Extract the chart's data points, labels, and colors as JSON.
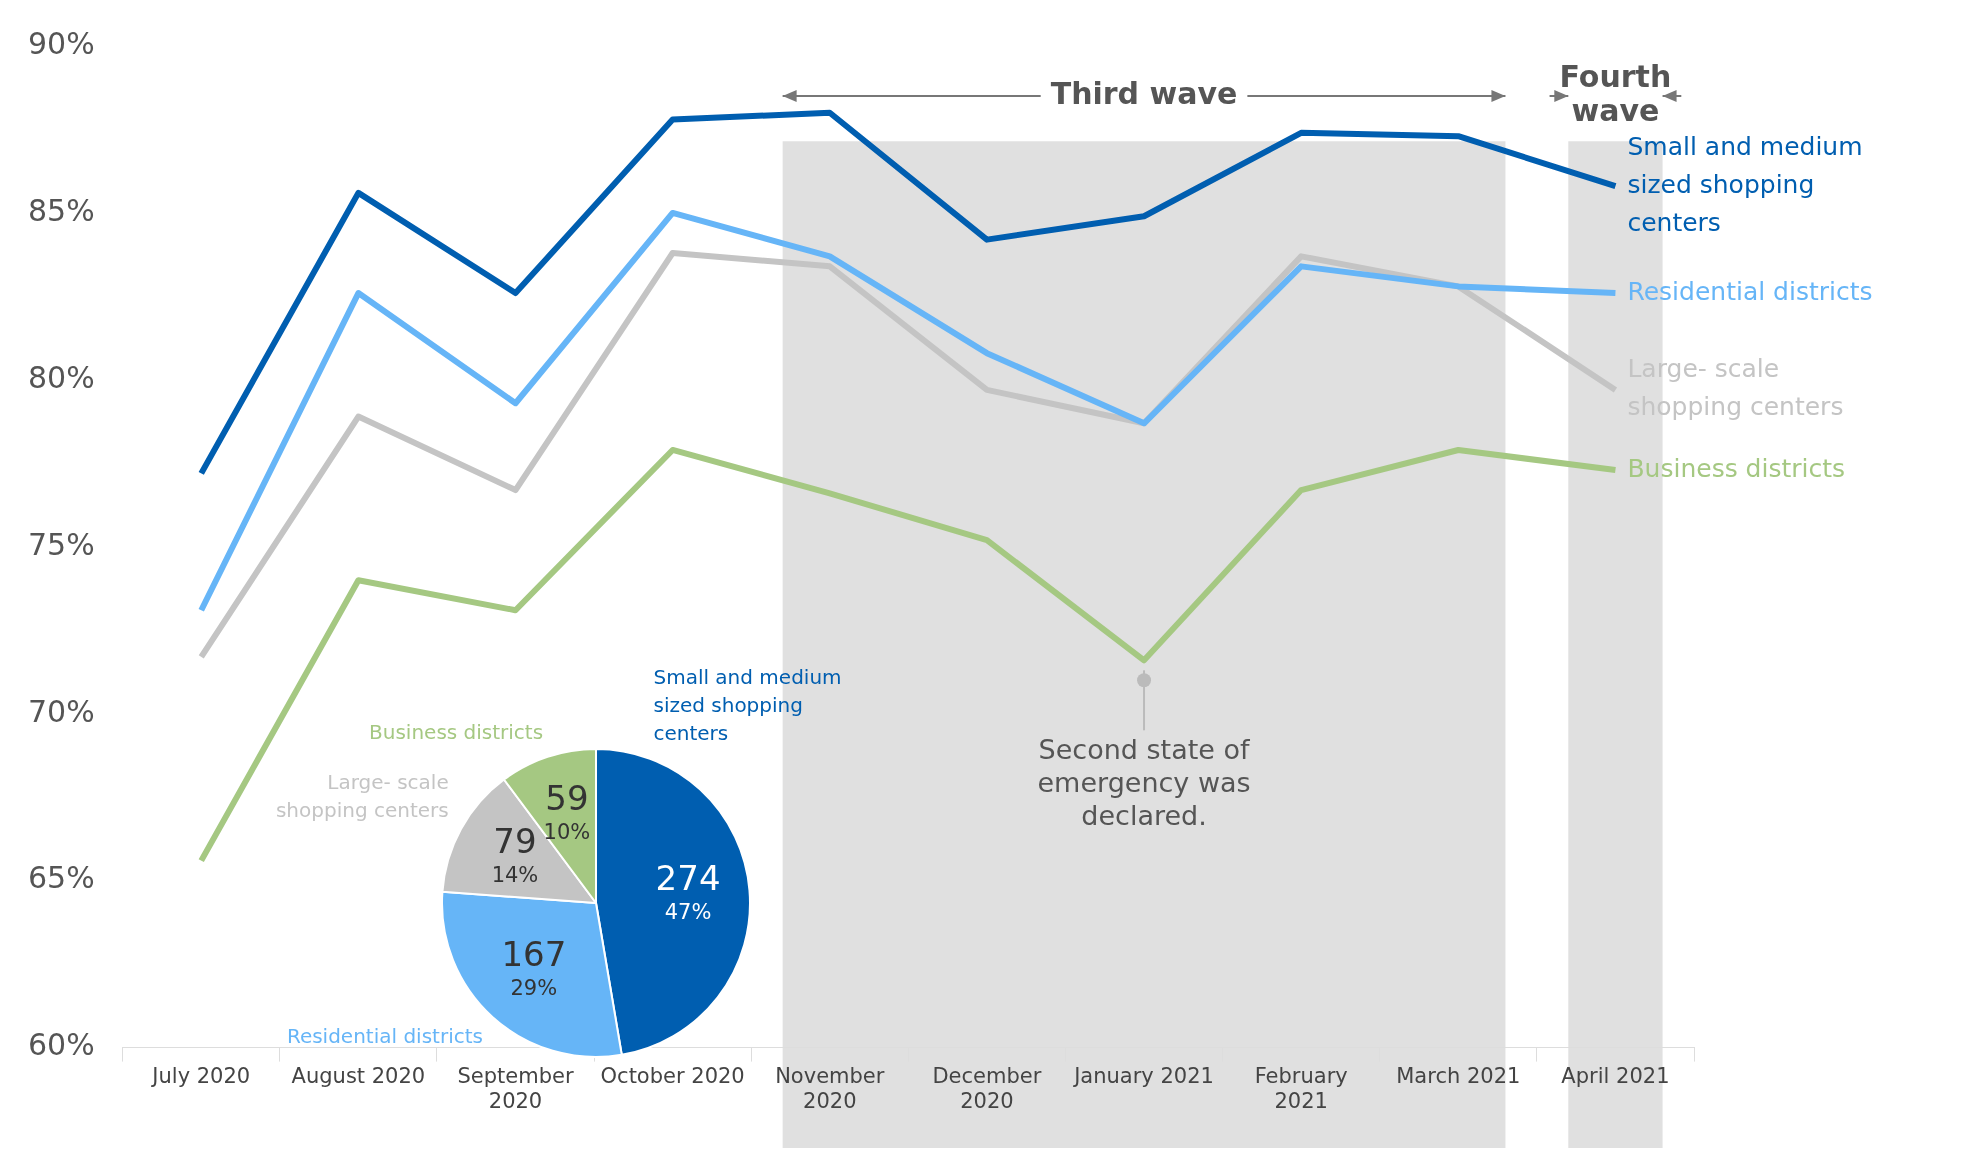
{
  "chart_data": [
    {
      "type": "line",
      "categories": [
        "July 2020",
        "August 2020",
        "September 2020",
        "October 2020",
        "November 2020",
        "December 2020",
        "January 2021",
        "February 2021",
        "March 2021",
        "April 2021"
      ],
      "series": [
        {
          "name": "Small and medium sized shopping centers",
          "color": "#005eb0",
          "values": [
            77.2,
            85.6,
            82.6,
            87.8,
            88.0,
            84.2,
            84.9,
            87.4,
            87.3,
            85.8
          ]
        },
        {
          "name": "Residential districts",
          "color": "#66b5f7",
          "values": [
            73.1,
            82.6,
            79.3,
            85.0,
            83.7,
            80.8,
            78.7,
            83.4,
            82.8,
            82.6
          ]
        },
        {
          "name": "Large- scale shopping centers",
          "color": "#c4c4c4",
          "values": [
            71.7,
            78.9,
            76.7,
            83.8,
            83.4,
            79.7,
            78.7,
            83.7,
            82.8,
            79.7
          ]
        },
        {
          "name": "Business districts",
          "color": "#a5c882",
          "values": [
            65.6,
            74.0,
            73.1,
            77.9,
            76.6,
            75.2,
            71.6,
            76.7,
            77.9,
            77.3
          ]
        }
      ],
      "ylim": [
        60,
        90
      ],
      "yticks": [
        {
          "value": 60,
          "label": "60%"
        },
        {
          "value": 65,
          "label": "65%"
        },
        {
          "value": 70,
          "label": "70%"
        },
        {
          "value": 75,
          "label": "75%"
        },
        {
          "value": 80,
          "label": "80%"
        },
        {
          "value": 85,
          "label": "85%"
        },
        {
          "value": 90,
          "label": "90%"
        }
      ],
      "grid": false,
      "marker": "none",
      "bands": [
        {
          "axis": "x",
          "from": "November 2020",
          "to": "March 2021",
          "label": "Third wave",
          "color": "#e0e0e0"
        },
        {
          "axis": "x",
          "from": "April 2021",
          "to": "April 2021",
          "label": "Fourth wave",
          "color": "#e0e0e0"
        }
      ],
      "annotations": [
        {
          "text": "Second state of emergency was declared.",
          "x": "January 2021",
          "y": 71.6
        }
      ]
    },
    {
      "type": "pie",
      "categories": [
        "Small and medium sized shopping centers",
        "Residential districts",
        "Large- scale shopping centers",
        "Business districts"
      ],
      "values": [
        274,
        167,
        79,
        59
      ],
      "colors": [
        "#005eb0",
        "#66b5f7",
        "#c4c4c4",
        "#a5c882"
      ],
      "value_labels": [
        "274 47%",
        "167 29%",
        "79 14%",
        "59 10%"
      ]
    }
  ]
}
